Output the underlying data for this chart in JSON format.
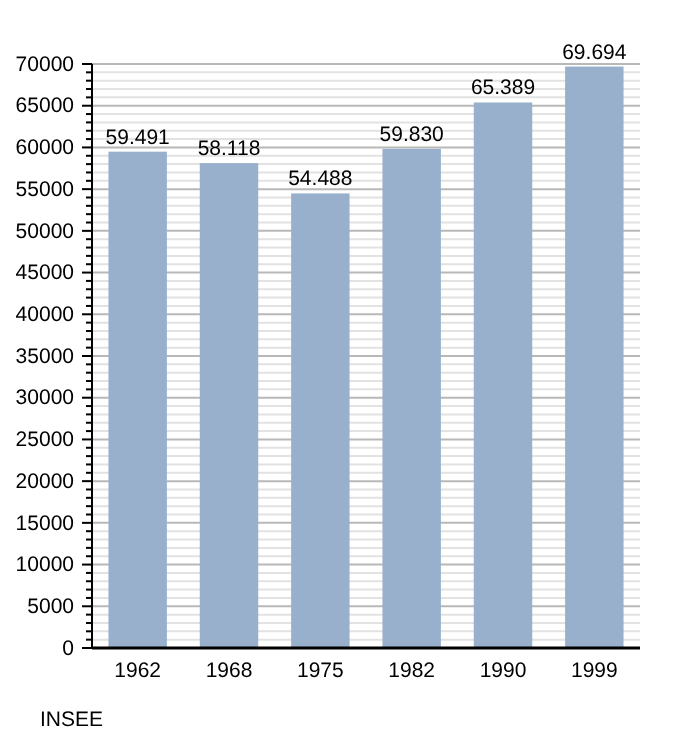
{
  "chart_data": {
    "type": "bar",
    "categories": [
      "1962",
      "1968",
      "1975",
      "1982",
      "1990",
      "1999"
    ],
    "values": [
      59491,
      58118,
      54488,
      59830,
      65389,
      69694
    ],
    "value_labels": [
      "59.491",
      "58.118",
      "54.488",
      "59.830",
      "65.389",
      "69.694"
    ],
    "color": "#98b0cb",
    "ylim": [
      0,
      70000
    ],
    "yticks": [
      0,
      {
        "value": 1000,
        "label": null
      },
      {
        "value": 2000,
        "label": null
      },
      {
        "value": 3000,
        "label": null
      },
      {
        "value": 4000,
        "label": null
      },
      5000,
      {
        "value": 6000,
        "label": null
      },
      {
        "value": 7000,
        "label": null
      },
      {
        "value": 8000,
        "label": null
      },
      {
        "value": 9000,
        "label": null
      },
      10000,
      {
        "value": 11000,
        "label": null
      },
      {
        "value": 12000,
        "label": null
      },
      {
        "value": 13000,
        "label": null
      },
      {
        "value": 14000,
        "label": null
      },
      15000,
      {
        "value": 16000,
        "label": null
      },
      {
        "value": 17000,
        "label": null
      },
      {
        "value": 18000,
        "label": null
      },
      {
        "value": 19000,
        "label": null
      },
      20000,
      {
        "value": 21000,
        "label": null
      },
      {
        "value": 22000,
        "label": null
      },
      {
        "value": 23000,
        "label": null
      },
      {
        "value": 24000,
        "label": null
      },
      25000,
      {
        "value": 26000,
        "label": null
      },
      {
        "value": 27000,
        "label": null
      },
      {
        "value": 28000,
        "label": null
      },
      {
        "value": 29000,
        "label": null
      },
      30000,
      {
        "value": 31000,
        "label": null
      },
      {
        "value": 32000,
        "label": null
      },
      {
        "value": 33000,
        "label": null
      },
      {
        "value": 34000,
        "label": null
      },
      35000,
      {
        "value": 36000,
        "label": null
      },
      {
        "value": 37000,
        "label": null
      },
      {
        "value": 38000,
        "label": null
      },
      {
        "value": 39000,
        "label": null
      },
      40000,
      {
        "value": 41000,
        "label": null
      },
      {
        "value": 42000,
        "label": null
      },
      {
        "value": 43000,
        "label": null
      },
      {
        "value": 44000,
        "label": null
      },
      45000,
      {
        "value": 46000,
        "label": null
      },
      {
        "value": 47000,
        "label": null
      },
      {
        "value": 48000,
        "label": null
      },
      {
        "value": 49000,
        "label": null
      },
      50000,
      {
        "value": 51000,
        "label": null
      },
      {
        "value": 52000,
        "label": null
      },
      {
        "value": 53000,
        "label": null
      },
      {
        "value": 54000,
        "label": null
      },
      55000,
      {
        "value": 56000,
        "label": null
      },
      {
        "value": 57000,
        "label": null
      },
      {
        "value": 58000,
        "label": null
      },
      {
        "value": 59000,
        "label": null
      },
      60000,
      {
        "value": 61000,
        "label": null
      },
      {
        "value": 62000,
        "label": null
      },
      {
        "value": 63000,
        "label": null
      },
      {
        "value": 64000,
        "label": null
      },
      65000,
      {
        "value": 66000,
        "label": null
      },
      {
        "value": 67000,
        "label": null
      },
      {
        "value": 68000,
        "label": null
      },
      {
        "value": 69000,
        "label": null
      },
      70000
    ],
    "grid": "y",
    "annotations": [
      "INSEE"
    ]
  }
}
